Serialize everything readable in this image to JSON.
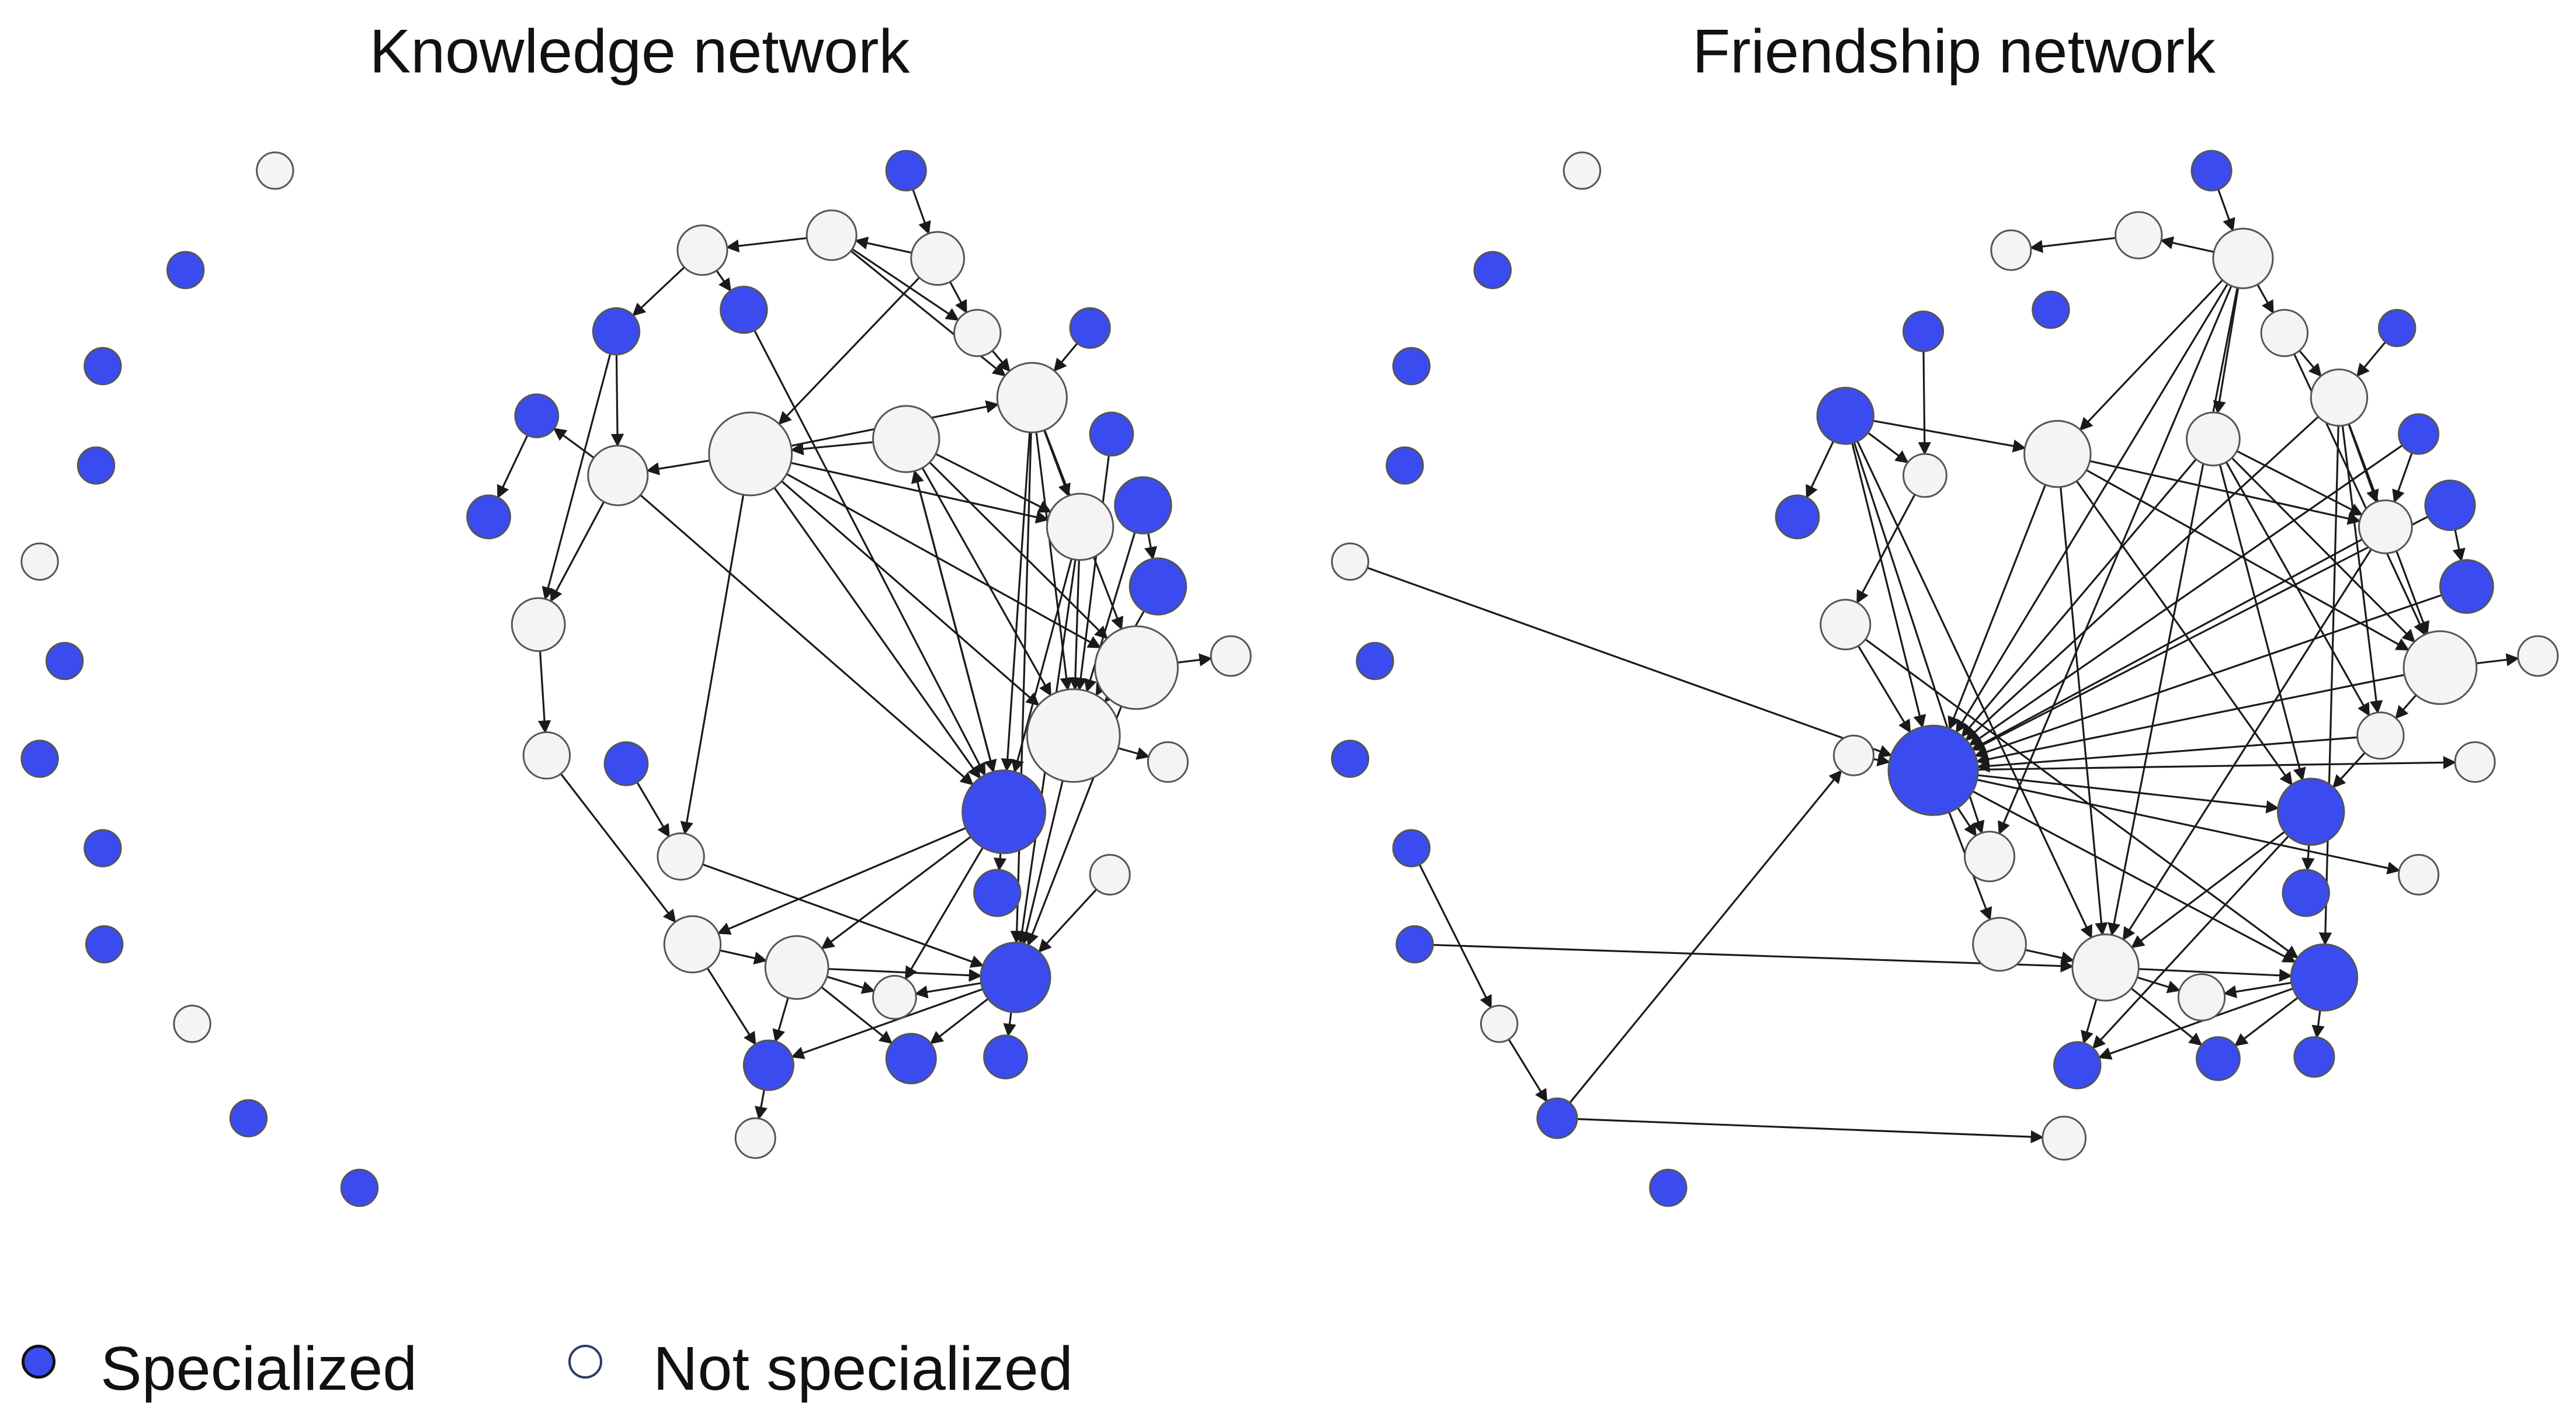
{
  "titles": {
    "left": "Knowledge network",
    "right": "Friendship network"
  },
  "legend": {
    "specialized": {
      "label": "Specialized",
      "color": "#3a4cf0"
    },
    "not_specialized": {
      "label": "Not specialized",
      "color": "#f4f4f4"
    }
  }
}
